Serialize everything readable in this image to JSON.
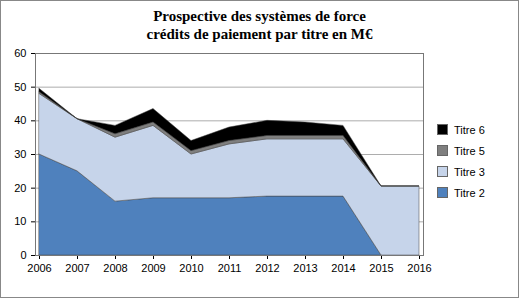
{
  "chart_data": {
    "type": "area",
    "stacked": true,
    "title": "Prospective des systèmes de force",
    "subtitle": "crédits de paiement par titre en M€",
    "categories": [
      "2006",
      "2007",
      "2008",
      "2009",
      "2010",
      "2011",
      "2012",
      "2013",
      "2014",
      "2015",
      "2016"
    ],
    "series": [
      {
        "name": "Titre 2",
        "color": "#4f81bd",
        "values": [
          30,
          25,
          16,
          17,
          17,
          17,
          17.5,
          17.5,
          17.5,
          0,
          0
        ]
      },
      {
        "name": "Titre 3",
        "color": "#c6d4ea",
        "values": [
          18,
          15.5,
          19,
          21.5,
          13,
          16,
          17,
          17,
          17,
          20.5,
          20.5
        ]
      },
      {
        "name": "Titre 5",
        "color": "#7f7f7f",
        "values": [
          0.5,
          0,
          1,
          1,
          1,
          1,
          1,
          1,
          1,
          0,
          0
        ]
      },
      {
        "name": "Titre 6",
        "color": "#000000",
        "values": [
          1,
          0,
          2.5,
          4,
          3,
          4,
          4.5,
          4,
          3,
          0,
          0
        ]
      }
    ],
    "ylim": [
      0,
      60
    ],
    "yticks": [
      0,
      10,
      20,
      30,
      40,
      50,
      60
    ],
    "grid": true,
    "legend": "right"
  }
}
